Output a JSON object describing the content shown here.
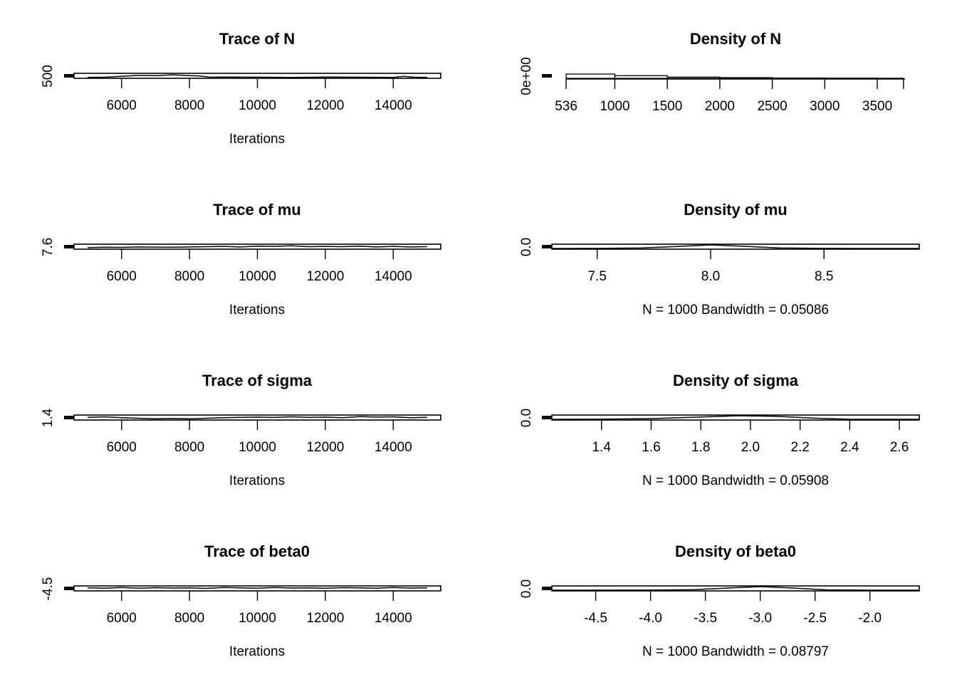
{
  "chart_data": [
    {
      "type": "line",
      "title": "Trace of N",
      "xlabel": "Iterations",
      "ylabel": "",
      "x_range": [
        5000,
        15000
      ],
      "xlim": [
        4600,
        15400
      ],
      "x_ticks": [
        "6000",
        "8000",
        "10000",
        "12000",
        "14000"
      ],
      "y_ticks": [
        "500"
      ],
      "y_range": [
        460,
        640
      ],
      "series": [
        {
          "x": [
            5000,
            5500,
            6000,
            6500,
            7000,
            7500,
            8000,
            8300,
            8600,
            9000,
            10000,
            11000,
            12000,
            13000,
            14000,
            14300,
            14600,
            15000
          ],
          "values": [
            470,
            480,
            520,
            570,
            560,
            600,
            560,
            540,
            480,
            490,
            480,
            470,
            490,
            480,
            470,
            520,
            480,
            470
          ]
        }
      ]
    },
    {
      "type": "area",
      "title": "Density of N",
      "xlabel": "",
      "ylabel": "",
      "x_ticks": [
        "536",
        "1000",
        "1500",
        "2000",
        "2500",
        "3000",
        "3500"
      ],
      "y_ticks": [
        "0e+00"
      ],
      "xlim": [
        400,
        3900
      ],
      "bins": [
        {
          "from": 536,
          "to": 1000,
          "value": 1.0
        },
        {
          "from": 1000,
          "to": 1500,
          "value": 0.62
        },
        {
          "from": 1500,
          "to": 2000,
          "value": 0.28
        },
        {
          "from": 2000,
          "to": 2500,
          "value": 0.16
        },
        {
          "from": 2500,
          "to": 3000,
          "value": 0.07
        },
        {
          "from": 3000,
          "to": 3500,
          "value": 0.04
        },
        {
          "from": 3500,
          "to": 3750,
          "value": 0.02
        }
      ]
    },
    {
      "type": "line",
      "title": "Trace of mu",
      "xlabel": "Iterations",
      "ylabel": "",
      "x_range": [
        5000,
        15000
      ],
      "xlim": [
        4600,
        15400
      ],
      "x_ticks": [
        "6000",
        "8000",
        "10000",
        "12000",
        "14000"
      ],
      "y_ticks": [
        "7.6"
      ],
      "y_range": [
        7.4,
        8.6
      ],
      "series": [
        {
          "x": [
            5000,
            5500,
            6000,
            6500,
            7000,
            7500,
            8000,
            8500,
            9000,
            9500,
            10000,
            10500,
            11000,
            11500,
            12000,
            12500,
            13000,
            13500,
            14000,
            14500,
            15000
          ],
          "values": [
            7.7,
            7.8,
            7.75,
            7.9,
            7.85,
            7.8,
            7.9,
            8.0,
            8.1,
            7.9,
            8.2,
            8.1,
            8.3,
            8.0,
            8.1,
            8.0,
            8.2,
            7.9,
            8.1,
            7.9,
            8.0
          ]
        }
      ]
    },
    {
      "type": "line",
      "title": "Density of mu",
      "xlabel": "N = 1000   Bandwidth = 0.05086",
      "ylabel": "",
      "x_ticks": [
        "7.5",
        "8.0",
        "8.5"
      ],
      "x_tick_values": [
        7.5,
        8.0,
        8.5
      ],
      "xlim": [
        7.3,
        8.92
      ],
      "y_ticks": [
        "0.0"
      ],
      "series": [
        {
          "x": [
            7.3,
            7.5,
            7.7,
            7.85,
            8.0,
            8.15,
            8.3,
            8.5,
            8.7,
            8.92
          ],
          "values": [
            0.0,
            0.02,
            0.15,
            0.55,
            1.0,
            0.6,
            0.15,
            0.02,
            0.0,
            0.0
          ]
        }
      ]
    },
    {
      "type": "line",
      "title": "Trace of sigma",
      "xlabel": "Iterations",
      "ylabel": "",
      "x_range": [
        5000,
        15000
      ],
      "xlim": [
        4600,
        15400
      ],
      "x_ticks": [
        "6000",
        "8000",
        "10000",
        "12000",
        "14000"
      ],
      "y_ticks": [
        "1.4"
      ],
      "y_range": [
        1.3,
        2.6
      ],
      "series": [
        {
          "x": [
            5000,
            5500,
            6000,
            6500,
            7000,
            7500,
            8000,
            8500,
            9000,
            9500,
            10000,
            10500,
            11000,
            11500,
            12000,
            12500,
            13000,
            13500,
            14000,
            14500,
            15000
          ],
          "values": [
            2.0,
            2.2,
            1.9,
            1.7,
            1.5,
            1.6,
            1.5,
            1.7,
            1.9,
            2.0,
            2.1,
            2.0,
            2.2,
            2.0,
            2.1,
            1.9,
            2.3,
            2.1,
            2.2,
            1.9,
            2.0
          ]
        }
      ]
    },
    {
      "type": "line",
      "title": "Density of sigma",
      "xlabel": "N = 1000   Bandwidth = 0.05908",
      "ylabel": "",
      "x_ticks": [
        "1.4",
        "1.6",
        "1.8",
        "2.0",
        "2.2",
        "2.4",
        "2.6"
      ],
      "x_tick_values": [
        1.4,
        1.6,
        1.8,
        2.0,
        2.2,
        2.4,
        2.6
      ],
      "xlim": [
        1.2,
        2.68
      ],
      "y_ticks": [
        "0.0"
      ],
      "series": [
        {
          "x": [
            1.2,
            1.4,
            1.6,
            1.8,
            1.95,
            2.1,
            2.25,
            2.4,
            2.68
          ],
          "values": [
            0.0,
            0.05,
            0.2,
            0.65,
            1.0,
            0.85,
            0.35,
            0.02,
            0.0
          ]
        }
      ]
    },
    {
      "type": "line",
      "title": "Trace of beta0",
      "xlabel": "Iterations",
      "ylabel": "",
      "x_range": [
        5000,
        15000
      ],
      "xlim": [
        4600,
        15400
      ],
      "x_ticks": [
        "6000",
        "8000",
        "10000",
        "12000",
        "14000"
      ],
      "y_ticks": [
        "-4.5"
      ],
      "y_range": [
        -5.0,
        -2.0
      ],
      "series": [
        {
          "x": [
            5000,
            5500,
            6000,
            6500,
            7000,
            7500,
            8000,
            8500,
            9000,
            9500,
            10000,
            10500,
            11000,
            11500,
            12000,
            12500,
            13000,
            13500,
            14000,
            14500,
            15000
          ],
          "values": [
            -3.0,
            -3.3,
            -2.8,
            -3.4,
            -2.9,
            -3.2,
            -3.0,
            -3.5,
            -2.7,
            -3.1,
            -3.3,
            -2.8,
            -3.2,
            -3.0,
            -3.4,
            -2.9,
            -3.1,
            -3.3,
            -2.8,
            -3.2,
            -3.0
          ]
        }
      ]
    },
    {
      "type": "line",
      "title": "Density of beta0",
      "xlabel": "N = 1000   Bandwidth = 0.08797",
      "ylabel": "",
      "x_ticks": [
        "-4.5",
        "-4.0",
        "-3.5",
        "-3.0",
        "-2.5",
        "-2.0"
      ],
      "x_tick_values": [
        -4.5,
        -4.0,
        -3.5,
        -3.0,
        -2.5,
        -2.0
      ],
      "xlim": [
        -4.9,
        -1.55
      ],
      "y_ticks": [
        "0.0"
      ],
      "series": [
        {
          "x": [
            -4.9,
            -4.0,
            -3.6,
            -3.3,
            -3.0,
            -2.7,
            -2.4,
            -2.0,
            -1.55
          ],
          "values": [
            0.0,
            0.02,
            0.15,
            0.6,
            1.0,
            0.6,
            0.1,
            0.0,
            0.0
          ]
        }
      ]
    }
  ]
}
